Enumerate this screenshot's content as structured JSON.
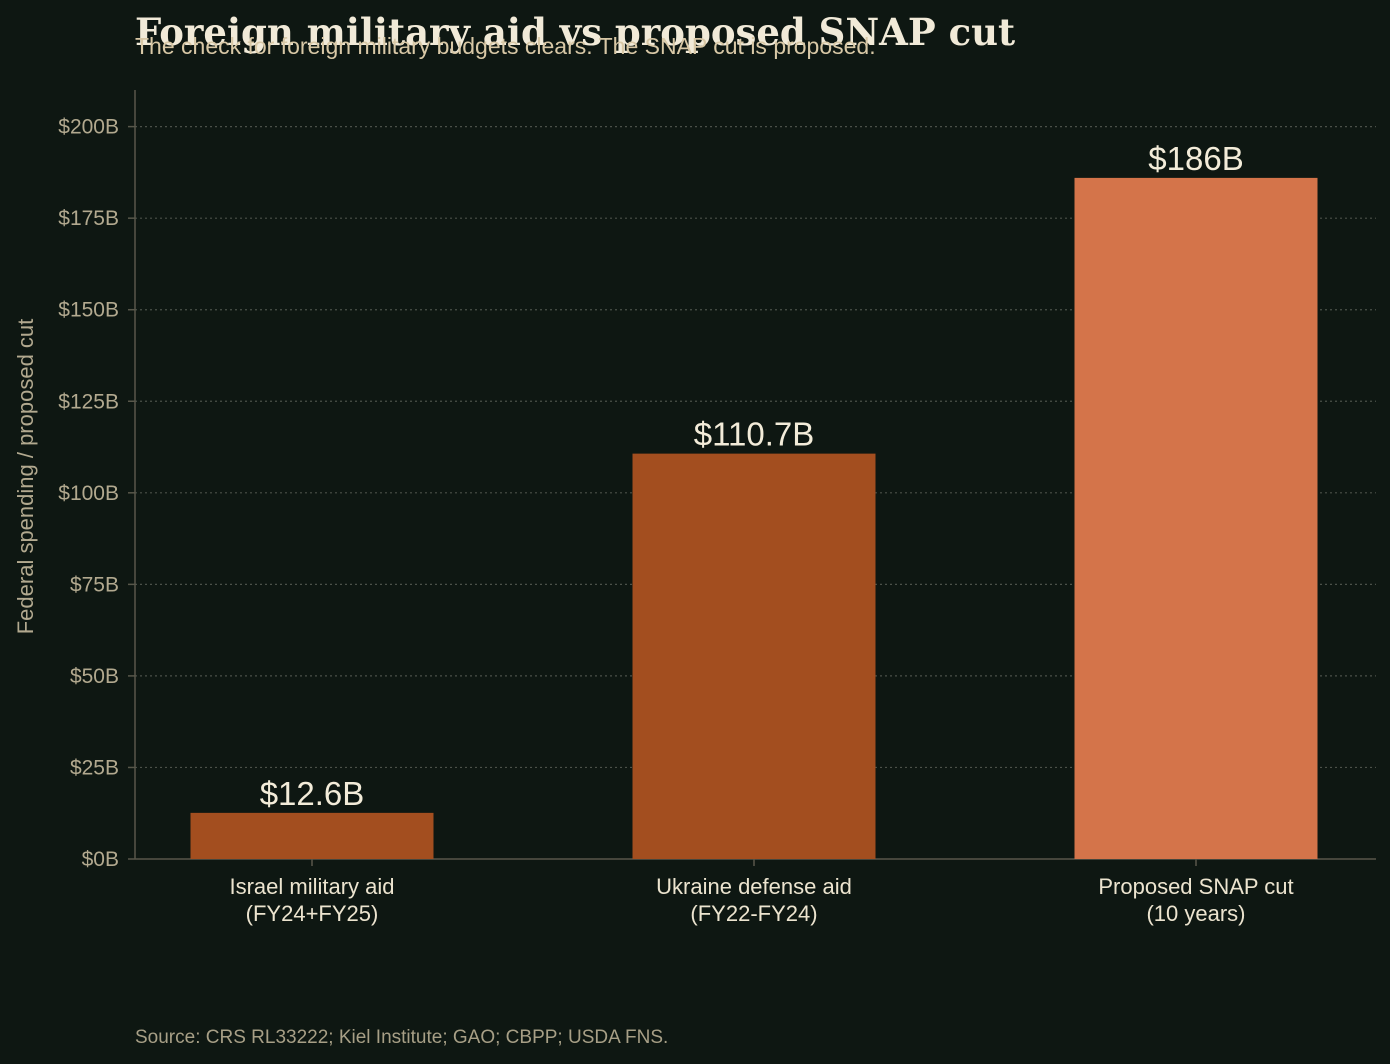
{
  "chart_data": {
    "type": "bar",
    "title": "Foreign military aid vs proposed SNAP cut",
    "subtitle": "The check for foreign military budgets clears. The SNAP cut is proposed.",
    "ylabel": "Federal spending / proposed cut",
    "xlabel": "",
    "categories": [
      [
        "Israel military aid",
        "(FY24+FY25)"
      ],
      [
        "Ukraine defense aid",
        "(FY22-FY24)"
      ],
      [
        "Proposed SNAP cut",
        "(10 years)"
      ]
    ],
    "values": [
      12.6,
      110.7,
      186
    ],
    "value_labels": [
      "$12.6B",
      "$110.7B",
      "$186B"
    ],
    "bar_colors": [
      "#a34e1f",
      "#a34e1f",
      "#d4744a"
    ],
    "y_ticks": [
      0,
      25,
      50,
      75,
      100,
      125,
      150,
      175,
      200
    ],
    "y_tick_labels": [
      "$0B",
      "$25B",
      "$50B",
      "$75B",
      "$100B",
      "$125B",
      "$150B",
      "$175B",
      "$200B"
    ],
    "ylim": [
      0,
      210
    ],
    "grid": "horizontal dotted",
    "source": "Source: CRS RL33222; Kiel Institute; GAO; CBPP; USDA FNS."
  },
  "colors": {
    "background": "#0e1712",
    "title": "#f1ead8",
    "subtitle": "#d8c8a6",
    "tick_text": "#b2a98f",
    "category_text": "#ece4cf",
    "data_label_text": "#f3ecd9",
    "grid": "#4b5149",
    "axis": "#58574a"
  }
}
